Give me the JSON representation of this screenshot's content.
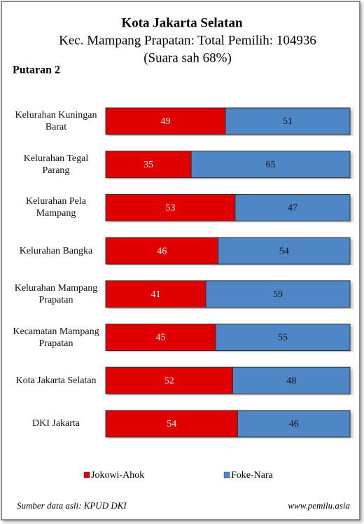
{
  "chart_data": {
    "type": "stacked-barh",
    "title": "Kota Jakarta Selatan",
    "subtitle": "Kec. Mampang Prapatan: Total Pemilih: 104936",
    "subtitle2": "(Suara sah 68%)",
    "round_label": "Putaran 2",
    "categories": [
      "Kelurahan Kuningan Barat",
      "Kelurahan Tegal Parang",
      "Kelurahan Pela Mampang",
      "Kelurahan Bangka",
      "Kelurahan Mampang Prapatan",
      "Kecamatan Mampang Prapatan",
      "Kota Jakarta Selatan",
      "DKI Jakarta"
    ],
    "series": [
      {
        "name": "Jokowi-Ahok",
        "color": "#e00000",
        "values": [
          49,
          35,
          53,
          46,
          41,
          45,
          52,
          54
        ]
      },
      {
        "name": "Foke-Nara",
        "color": "#4f86c6",
        "values": [
          51,
          65,
          47,
          54,
          59,
          55,
          48,
          46
        ]
      }
    ],
    "legend": "bottom",
    "source": "Sumber data asli: KPUD DKI",
    "website": "www.pemilu.asia"
  }
}
